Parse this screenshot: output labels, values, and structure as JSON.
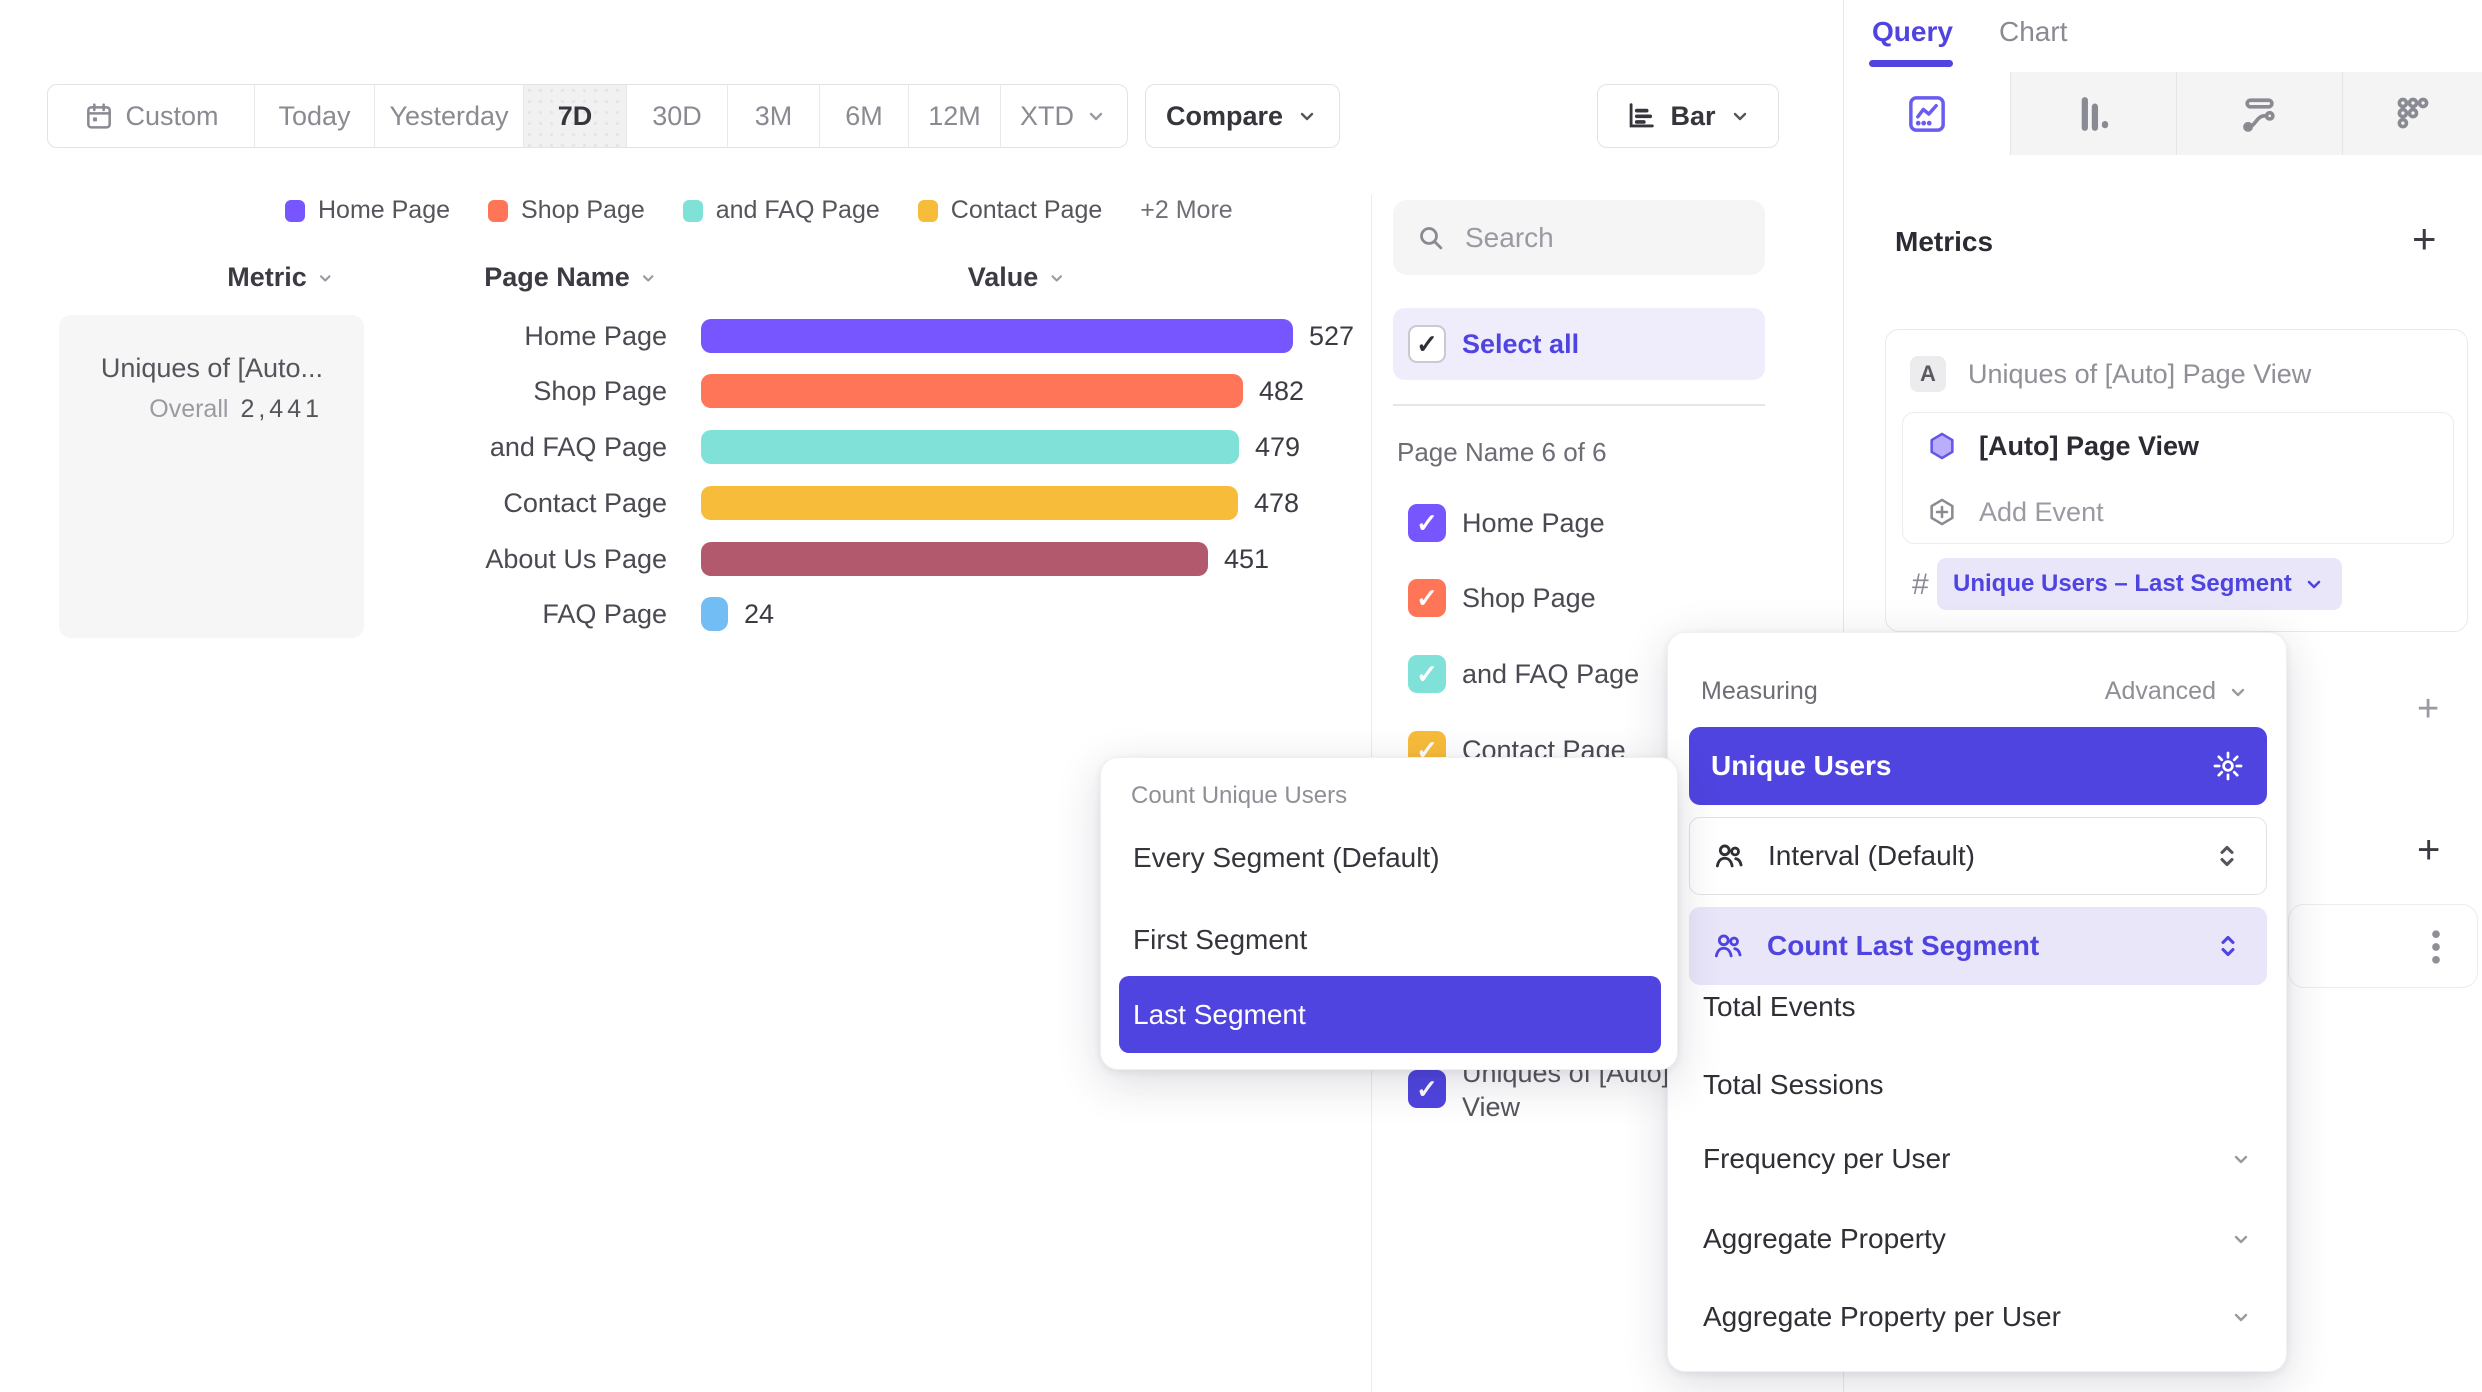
{
  "colors": {
    "accent": "#4F44E0",
    "lavender_bg": "#E9E6FA",
    "select_all_bg": "#EFEDFC"
  },
  "toolbar": {
    "date_ranges": [
      "Custom",
      "Today",
      "Yesterday",
      "7D",
      "30D",
      "3M",
      "6M",
      "12M",
      "XTD"
    ],
    "active_range": "7D",
    "compare_label": "Compare",
    "chart_type_label": "Bar"
  },
  "legend": {
    "items": [
      {
        "label": "Home Page",
        "color": "#7856FF"
      },
      {
        "label": "Shop Page",
        "color": "#FF7557"
      },
      {
        "label": "and FAQ Page",
        "color": "#80E1D9"
      },
      {
        "label": "Contact Page",
        "color": "#F8BC3B"
      }
    ],
    "more_label": "+2 More"
  },
  "table": {
    "headers": [
      "Metric",
      "Page Name",
      "Value"
    ],
    "metric": {
      "name": "Uniques of [Auto...",
      "overall_label": "Overall",
      "overall_value": "2,441"
    },
    "rows": [
      {
        "label": "Home Page",
        "value": 527,
        "color": "#7856FF"
      },
      {
        "label": "Shop Page",
        "value": 482,
        "color": "#FF7557"
      },
      {
        "label": "and FAQ Page",
        "value": 479,
        "color": "#80E1D9"
      },
      {
        "label": "Contact Page",
        "value": 478,
        "color": "#F8BC3B"
      },
      {
        "label": "About Us Page",
        "value": 451,
        "color": "#B2596E"
      },
      {
        "label": "FAQ Page",
        "value": 24,
        "color": "#72BEF4"
      }
    ]
  },
  "chart_data": {
    "type": "bar",
    "orientation": "horizontal",
    "title": "",
    "xlabel": "Value",
    "ylabel": "Page Name",
    "categories": [
      "Home Page",
      "Shop Page",
      "and FAQ Page",
      "Contact Page",
      "About Us Page",
      "FAQ Page"
    ],
    "values": [
      527,
      482,
      479,
      478,
      451,
      24
    ],
    "colors": [
      "#7856FF",
      "#FF7557",
      "#80E1D9",
      "#F8BC3B",
      "#B2596E",
      "#72BEF4"
    ],
    "metric": "Uniques of [Auto] Page View",
    "overall_total": 2441,
    "xlim": [
      0,
      560
    ],
    "legend_position": "top",
    "grid": false
  },
  "filter_panel": {
    "search_placeholder": "Search",
    "select_all_label": "Select all",
    "group_label": "Page Name 6 of 6",
    "items": [
      {
        "label": "Home Page",
        "color": "#7856FF",
        "checked": true
      },
      {
        "label": "Shop Page",
        "color": "#FF7557",
        "checked": true
      },
      {
        "label": "and FAQ Page",
        "color": "#80E1D9",
        "checked": true
      },
      {
        "label": "Contact Page",
        "color": "#F8BC3B",
        "checked": true
      }
    ],
    "metric_item": {
      "line1": "Uniques of [Auto] Page",
      "line2": "View",
      "color": "#4F44E0",
      "checked": true
    }
  },
  "segment_menu": {
    "title": "Count Unique Users",
    "options": [
      "Every Segment (Default)",
      "First Segment",
      "Last Segment"
    ],
    "selected": "Last Segment"
  },
  "measuring_menu": {
    "title": "Measuring",
    "advanced_label": "Advanced",
    "selected": "Unique Users",
    "interval_label": "Interval (Default)",
    "count_mode_label": "Count Last Segment",
    "options": [
      "Total Events",
      "Total Sessions",
      "Frequency per User",
      "Aggregate Property",
      "Aggregate Property per User"
    ],
    "expandable_options": [
      "Frequency per User",
      "Aggregate Property",
      "Aggregate Property per User"
    ]
  },
  "query_panel": {
    "tabs": [
      "Query",
      "Chart"
    ],
    "active_tab": "Query",
    "metrics_title": "Metrics",
    "add_symbol": "+",
    "metric_row_badge": "A",
    "metric_row_label": "Uniques of [Auto] Page View",
    "event_label": "[Auto] Page View",
    "add_event_label": "Add Event",
    "hash_symbol": "#",
    "measure_pill_label": "Unique Users – Last Segment"
  }
}
